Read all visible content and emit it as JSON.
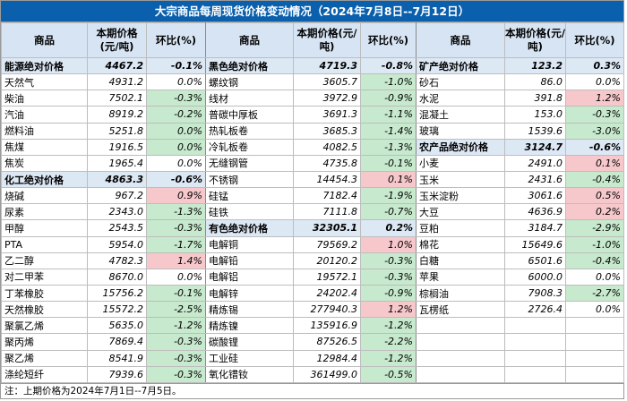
{
  "title": "大宗商品每周现货价格变动情况（2024年7月8日--7月12日）",
  "headers": {
    "name": "商品",
    "price": "本期价格(元/吨)",
    "change": "环比(%)"
  },
  "rows": [
    [
      {
        "n": "能源绝对价格",
        "p": "4467.2",
        "c": "-0.1%",
        "t": "idx"
      },
      {
        "n": "黑色绝对价格",
        "p": "4719.3",
        "c": "-0.8%",
        "t": "idx"
      },
      {
        "n": "矿产绝对价格",
        "p": "123.2",
        "c": "0.3%",
        "t": "idx"
      }
    ],
    [
      {
        "n": "天然气",
        "p": "4931.2",
        "c": "0.0%",
        "t": ""
      },
      {
        "n": "螺纹钢",
        "p": "3605.7",
        "c": "-1.0%",
        "t": "dn"
      },
      {
        "n": "砂石",
        "p": "86.0",
        "c": "0.0%",
        "t": ""
      }
    ],
    [
      {
        "n": "柴油",
        "p": "7502.1",
        "c": "-0.3%",
        "t": "dn"
      },
      {
        "n": "线材",
        "p": "3972.9",
        "c": "-0.9%",
        "t": "dn"
      },
      {
        "n": "水泥",
        "p": "391.8",
        "c": "1.2%",
        "t": "up"
      }
    ],
    [
      {
        "n": "汽油",
        "p": "8919.2",
        "c": "-0.2%",
        "t": "dn"
      },
      {
        "n": "普碳中厚板",
        "p": "3691.3",
        "c": "-1.1%",
        "t": "dn"
      },
      {
        "n": "混凝土",
        "p": "153.0",
        "c": "-0.3%",
        "t": "dn"
      }
    ],
    [
      {
        "n": "燃料油",
        "p": "5251.8",
        "c": "0.0%",
        "t": "dn"
      },
      {
        "n": "热轧板卷",
        "p": "3685.3",
        "c": "-1.4%",
        "t": "dn"
      },
      {
        "n": "玻璃",
        "p": "1539.6",
        "c": "-3.0%",
        "t": "dn"
      }
    ],
    [
      {
        "n": "焦煤",
        "p": "1916.5",
        "c": "0.0%",
        "t": "dn"
      },
      {
        "n": "冷轧板卷",
        "p": "4082.5",
        "c": "-1.3%",
        "t": "dn"
      },
      {
        "n": "农产品绝对价格",
        "p": "3124.7",
        "c": "-0.6%",
        "t": "idx"
      }
    ],
    [
      {
        "n": "焦炭",
        "p": "1965.4",
        "c": "0.0%",
        "t": ""
      },
      {
        "n": "无缝钢管",
        "p": "4735.8",
        "c": "-0.1%",
        "t": "dn"
      },
      {
        "n": "小麦",
        "p": "2491.0",
        "c": "0.1%",
        "t": "up"
      }
    ],
    [
      {
        "n": "化工绝对价格",
        "p": "4863.3",
        "c": "-0.6%",
        "t": "idx"
      },
      {
        "n": "不锈钢",
        "p": "14454.3",
        "c": "0.1%",
        "t": "up"
      },
      {
        "n": "玉米",
        "p": "2431.6",
        "c": "-0.4%",
        "t": "dn"
      }
    ],
    [
      {
        "n": "烧碱",
        "p": "967.2",
        "c": "0.9%",
        "t": "up"
      },
      {
        "n": "硅锰",
        "p": "7182.4",
        "c": "-1.9%",
        "t": "dn"
      },
      {
        "n": "玉米淀粉",
        "p": "3061.6",
        "c": "0.5%",
        "t": "up"
      }
    ],
    [
      {
        "n": "尿素",
        "p": "2343.0",
        "c": "-1.3%",
        "t": "dn"
      },
      {
        "n": "硅铁",
        "p": "7111.8",
        "c": "-0.7%",
        "t": "dn"
      },
      {
        "n": "大豆",
        "p": "4636.9",
        "c": "0.2%",
        "t": "up"
      }
    ],
    [
      {
        "n": "甲醇",
        "p": "2543.5",
        "c": "-0.3%",
        "t": "dn"
      },
      {
        "n": "有色绝对价格",
        "p": "32305.1",
        "c": "0.2%",
        "t": "idx"
      },
      {
        "n": "豆粕",
        "p": "3184.7",
        "c": "-2.9%",
        "t": "dn"
      }
    ],
    [
      {
        "n": "PTA",
        "p": "5954.0",
        "c": "-1.7%",
        "t": "dn"
      },
      {
        "n": "电解铜",
        "p": "79569.2",
        "c": "1.0%",
        "t": "up"
      },
      {
        "n": "棉花",
        "p": "15649.6",
        "c": "-1.0%",
        "t": "dn"
      }
    ],
    [
      {
        "n": "乙二醇",
        "p": "4782.3",
        "c": "1.4%",
        "t": "up"
      },
      {
        "n": "电解铅",
        "p": "20120.2",
        "c": "-0.3%",
        "t": "dn"
      },
      {
        "n": "白糖",
        "p": "6501.6",
        "c": "-0.4%",
        "t": "dn"
      }
    ],
    [
      {
        "n": "对二甲苯",
        "p": "8670.0",
        "c": "0.0%",
        "t": ""
      },
      {
        "n": "电解铝",
        "p": "19572.1",
        "c": "-0.3%",
        "t": "dn"
      },
      {
        "n": "苹果",
        "p": "6000.0",
        "c": "0.0%",
        "t": ""
      }
    ],
    [
      {
        "n": "丁苯橡胶",
        "p": "15756.2",
        "c": "-0.1%",
        "t": "dn"
      },
      {
        "n": "电解锌",
        "p": "24202.4",
        "c": "-0.9%",
        "t": "dn"
      },
      {
        "n": "棕榈油",
        "p": "7908.3",
        "c": "-2.7%",
        "t": "dn"
      }
    ],
    [
      {
        "n": "天然橡胶",
        "p": "15572.2",
        "c": "-2.5%",
        "t": "dn"
      },
      {
        "n": "精炼锡",
        "p": "277940.3",
        "c": "1.2%",
        "t": "up"
      },
      {
        "n": "瓦楞纸",
        "p": "2726.4",
        "c": "0.0%",
        "t": ""
      }
    ],
    [
      {
        "n": "聚氯乙烯",
        "p": "5635.0",
        "c": "-1.2%",
        "t": "dn"
      },
      {
        "n": "精炼镍",
        "p": "135916.9",
        "c": "-1.2%",
        "t": "dn"
      },
      {
        "n": "",
        "p": "",
        "c": "",
        "t": ""
      }
    ],
    [
      {
        "n": "聚丙烯",
        "p": "7869.4",
        "c": "-0.3%",
        "t": "dn"
      },
      {
        "n": "碳酸锂",
        "p": "87526.5",
        "c": "-2.2%",
        "t": "dn"
      },
      {
        "n": "",
        "p": "",
        "c": "",
        "t": ""
      }
    ],
    [
      {
        "n": "聚乙烯",
        "p": "8541.9",
        "c": "-0.3%",
        "t": "dn"
      },
      {
        "n": "工业硅",
        "p": "12984.4",
        "c": "-1.2%",
        "t": "dn"
      },
      {
        "n": "",
        "p": "",
        "c": "",
        "t": ""
      }
    ],
    [
      {
        "n": "涤纶短纤",
        "p": "7939.6",
        "c": "-0.3%",
        "t": "dn"
      },
      {
        "n": "氧化镨钕",
        "p": "361499.0",
        "c": "-0.5%",
        "t": "dn"
      },
      {
        "n": "",
        "p": "",
        "c": "",
        "t": ""
      }
    ]
  ],
  "note": "注：上期价格为2024年7月1日--7月5日。"
}
